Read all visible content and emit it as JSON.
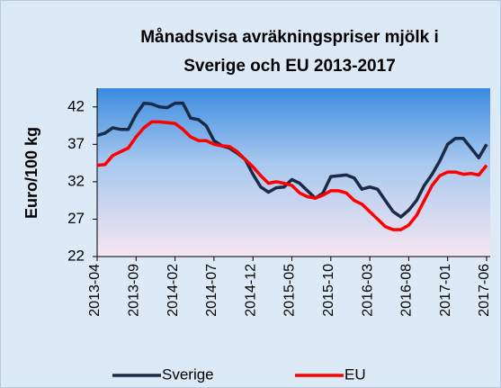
{
  "chart_data": {
    "type": "line",
    "title": [
      "Månadsvisa avräkningspriser mjölk i",
      "Sverige och EU 2013-2017"
    ],
    "ylabel": "Euro/100 kg",
    "categories": [
      "2013-04",
      null,
      null,
      null,
      null,
      "2013-09",
      null,
      null,
      null,
      null,
      "2014-02",
      null,
      null,
      null,
      null,
      "2014-07",
      null,
      null,
      null,
      null,
      "2014-12",
      null,
      null,
      null,
      null,
      "2015-05",
      null,
      null,
      null,
      null,
      "2015-10",
      null,
      null,
      null,
      null,
      "2016-03",
      null,
      null,
      null,
      null,
      "2016-08",
      null,
      null,
      null,
      null,
      "2017-01",
      null,
      null,
      null,
      null,
      "2017-06"
    ],
    "series": [
      {
        "name": "Sverige",
        "color": "#1b2a45",
        "values": [
          38.2,
          38.5,
          39.2,
          39.0,
          39.0,
          41.0,
          42.5,
          42.4,
          42.0,
          41.9,
          42.5,
          42.5,
          40.5,
          40.3,
          39.5,
          37.5,
          36.8,
          36.5,
          35.8,
          35.0,
          33.0,
          31.3,
          30.6,
          31.2,
          31.3,
          32.3,
          31.8,
          30.8,
          29.8,
          30.5,
          32.7,
          32.8,
          32.9,
          32.5,
          31.0,
          31.3,
          31.0,
          29.5,
          28.0,
          27.3,
          28.2,
          29.5,
          31.5,
          33.0,
          34.8,
          37.0,
          37.8,
          37.8,
          36.5,
          35.2,
          37.0
        ]
      },
      {
        "name": "EU",
        "color": "#ff0000",
        "values": [
          34.2,
          34.3,
          35.5,
          36.0,
          36.5,
          38.0,
          39.2,
          40.0,
          40.0,
          39.9,
          39.8,
          39.0,
          38.0,
          37.5,
          37.5,
          37.0,
          36.8,
          36.7,
          36.0,
          35.0,
          34.0,
          32.8,
          31.8,
          32.0,
          31.8,
          31.5,
          30.5,
          30.0,
          29.8,
          30.2,
          30.8,
          30.8,
          30.5,
          29.5,
          29.0,
          28.0,
          27.0,
          26.0,
          25.6,
          25.6,
          26.2,
          27.5,
          29.5,
          31.5,
          32.8,
          33.3,
          33.3,
          33.0,
          33.1,
          32.9,
          34.2
        ]
      }
    ],
    "ylim": [
      22,
      44.5
    ],
    "yticks": [
      22,
      27,
      32,
      37,
      42
    ],
    "legend": "bottom"
  }
}
